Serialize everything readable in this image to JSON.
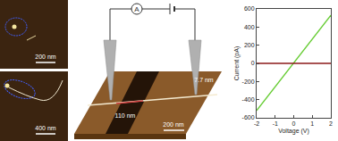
{
  "chart_data": {
    "type": "line",
    "xlabel": "Voltage (V)",
    "ylabel": "Current (pA)",
    "x": [
      -2,
      -1.5,
      -1,
      -0.5,
      0,
      0.5,
      1,
      1.5,
      2
    ],
    "series": [
      {
        "color": "#66cc33",
        "values": [
          -520,
          -390,
          -258,
          -128,
          0,
          130,
          262,
          395,
          530
        ]
      },
      {
        "color": "#8b1a1a",
        "values": [
          0,
          0,
          0,
          0,
          0,
          0,
          0,
          0,
          0
        ]
      }
    ],
    "xlim": [
      -2,
      2
    ],
    "xticks": [
      -2,
      -1,
      0,
      1,
      2
    ],
    "ylim": [
      -600,
      600
    ],
    "yticks": [
      -600,
      -400,
      -200,
      0,
      200,
      400,
      600
    ],
    "grid": false
  },
  "images": {
    "afm_top": {
      "scale_bar": "200 nm"
    },
    "afm_bottom": {
      "scale_bar": "400 nm"
    },
    "schematic": {
      "meter": "A",
      "wire_height": "7.7 nm",
      "trench_width": "110 nm",
      "scale_bar": "200 nm"
    }
  }
}
